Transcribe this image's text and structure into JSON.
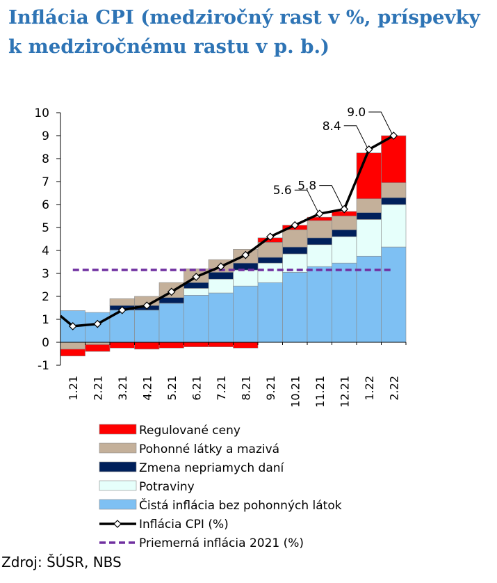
{
  "title": {
    "line1": "Inflácia CPI (medziročný rast v %, príspevky",
    "line2": "k medziročnému rastu v p. b.)"
  },
  "source": "Zdroj: ŠÚSR, NBS",
  "colors": {
    "regulated": "#ff0000",
    "fuels": "#c4b09a",
    "indirect_taxes": "#00205b",
    "food": "#e6fffb",
    "core": "#7ec0f3",
    "cpi_line": "#000000",
    "avg_line": "#7030a0"
  },
  "chart_data": {
    "type": "bar",
    "stacked": true,
    "categories": [
      "1.21",
      "2.21",
      "3.21",
      "4.21",
      "5.21",
      "6.21",
      "7.21",
      "8.21",
      "9.21",
      "10.21",
      "11.21",
      "12.21",
      "1.22",
      "2.22"
    ],
    "yticks": [
      -1,
      0,
      1,
      2,
      3,
      4,
      5,
      6,
      7,
      8,
      9,
      10
    ],
    "ylim": [
      -1,
      10
    ],
    "series": [
      {
        "name": "Čistá inflácia bez pohonných látok",
        "key": "core",
        "values": [
          1.38,
          1.3,
          1.4,
          1.4,
          1.7,
          2.05,
          2.15,
          2.45,
          2.6,
          3.05,
          3.3,
          3.45,
          3.75,
          4.15
        ]
      },
      {
        "name": "Potraviny",
        "key": "food",
        "values": [
          0.0,
          0.0,
          0.0,
          0.0,
          0.0,
          0.3,
          0.6,
          0.7,
          0.85,
          0.8,
          0.95,
          1.15,
          1.6,
          1.85
        ]
      },
      {
        "name": "Zmena nepriamych daní",
        "key": "indirect_taxes",
        "values": [
          0.0,
          0.0,
          0.2,
          0.2,
          0.25,
          0.25,
          0.3,
          0.3,
          0.25,
          0.3,
          0.3,
          0.3,
          0.3,
          0.3
        ]
      },
      {
        "name": "Pohonné látky a mazivá",
        "key": "fuels",
        "values": [
          -0.3,
          -0.1,
          0.3,
          0.4,
          0.65,
          0.6,
          0.55,
          0.6,
          0.65,
          0.75,
          0.75,
          0.6,
          0.6,
          0.65
        ]
      },
      {
        "name": "Regulované ceny",
        "key": "regulated",
        "values": [
          -0.3,
          -0.3,
          -0.25,
          -0.3,
          -0.25,
          -0.2,
          -0.2,
          -0.25,
          0.2,
          0.2,
          0.15,
          0.2,
          2.0,
          2.05
        ]
      }
    ],
    "line": {
      "name": "Inflácia CPI (%)",
      "start": 1.15,
      "values": [
        0.7,
        0.8,
        1.4,
        1.6,
        2.2,
        2.85,
        3.3,
        3.8,
        4.6,
        5.1,
        5.6,
        5.8,
        8.4,
        9.0
      ]
    },
    "avg_line": {
      "name": "Priemerná inflácia 2021 (%)",
      "value": 3.15
    },
    "annotations": [
      {
        "label": "5.6",
        "index": 10
      },
      {
        "label": "5.8",
        "index": 11
      },
      {
        "label": "8.4",
        "index": 12
      },
      {
        "label": "9.0",
        "index": 13
      }
    ],
    "legend": {
      "position": "bottom",
      "items": [
        {
          "label": "Regulované ceny",
          "kind": "box",
          "color_key": "regulated"
        },
        {
          "label": "Pohonné látky a mazivá",
          "kind": "box",
          "color_key": "fuels"
        },
        {
          "label": "Zmena nepriamych daní",
          "kind": "box",
          "color_key": "indirect_taxes"
        },
        {
          "label": "Potraviny",
          "kind": "box",
          "color_key": "food"
        },
        {
          "label": "Čistá inflácia bez pohonných látok",
          "kind": "box",
          "color_key": "core"
        },
        {
          "label": "Inflácia CPI (%)",
          "kind": "line-marker",
          "color_key": "cpi_line"
        },
        {
          "label": "Priemerná inflácia 2021 (%)",
          "kind": "dashed",
          "color_key": "avg_line"
        }
      ]
    }
  }
}
